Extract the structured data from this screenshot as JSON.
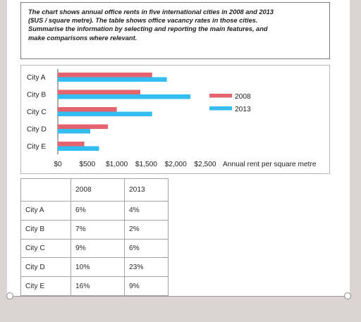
{
  "task": {
    "lines": [
      "The chart shows annual office rents in five international cities in 2008 and 2013",
      "($US / square metre). The table shows office vacancy rates in those cities.",
      "Summarise the information by selecting and reporting the main features, and",
      "make comparisons where relevant."
    ]
  },
  "chart_data": {
    "type": "bar",
    "orientation": "horizontal",
    "categories": [
      "City A",
      "City B",
      "City C",
      "City D",
      "City E"
    ],
    "series": [
      {
        "name": "2008",
        "color": "#e3636f",
        "values": [
          1600,
          1400,
          1000,
          850,
          450
        ]
      },
      {
        "name": "2013",
        "color": "#33bdf2",
        "values": [
          1850,
          2250,
          1600,
          550,
          700
        ]
      }
    ],
    "xticks": [
      "$0",
      "$500",
      "$1,000",
      "$1,500",
      "$2,000",
      "$2,500"
    ],
    "xlabel": "Annual rent per square metre",
    "xlim": [
      0,
      2500
    ],
    "grid": false,
    "legend_position": "right"
  },
  "table": {
    "headers": [
      "",
      "2008",
      "2013"
    ],
    "rows": [
      [
        "City A",
        "6%",
        "4%"
      ],
      [
        "City B",
        "7%",
        "2%"
      ],
      [
        "City C",
        "9%",
        "6%"
      ],
      [
        "City D",
        "10%",
        "23%"
      ],
      [
        "City E",
        "16%",
        "9%"
      ]
    ]
  }
}
